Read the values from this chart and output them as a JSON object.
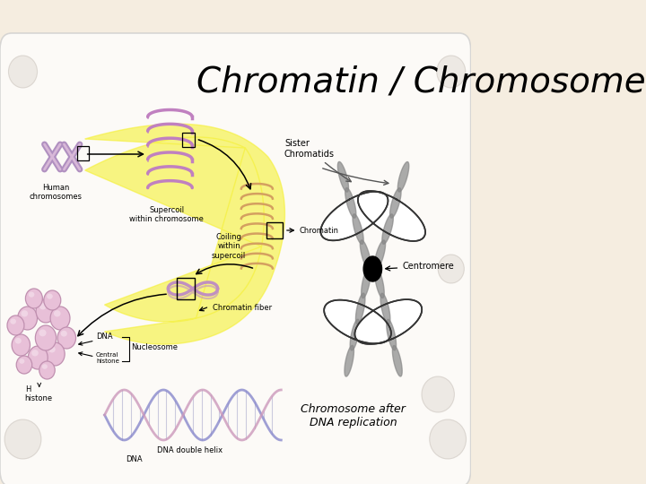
{
  "title": "Chromatin / Chromosomes",
  "title_fontsize": 28,
  "bg_color": "#f5ede0",
  "blob_color": "#f0ece4",
  "labels": {
    "human_chromosomes": "Human\nchromosomes",
    "supercoil": "Supercoil\nwithin chromosome",
    "coiling": "Coiling\nwithin\nsupercoil",
    "chromatin": "Chromatin",
    "chromatin_fiber": "Chromatin fiber",
    "dna_label": "DNA",
    "central_histone": "Central\nhistone",
    "nucleosome": "Nucleosome",
    "h_histone": "H\nhistone",
    "dna_double_helix": "DNA double helix",
    "dna_bottom": "DNA",
    "sister_chromatids": "Sister\nChromatids",
    "centromere": "Centromere",
    "chromosome_after": "Chromosome after\nDNA replication"
  },
  "yellow_color": "#f5f032",
  "yellow_alpha": 0.6,
  "purple_light": "#d4a8d4",
  "purple_mid": "#c090c0",
  "purple_dark": "#9060a0",
  "pink_bead": "#e8c0d8",
  "orange_coil": "#d4a060",
  "blue_dna1": "#8888cc",
  "pink_dna2": "#cc99bb",
  "gray_chrom": "#aaaaaa",
  "gray_dark": "#555555",
  "fs_small": 6,
  "fs_med": 7,
  "fs_large": 9
}
